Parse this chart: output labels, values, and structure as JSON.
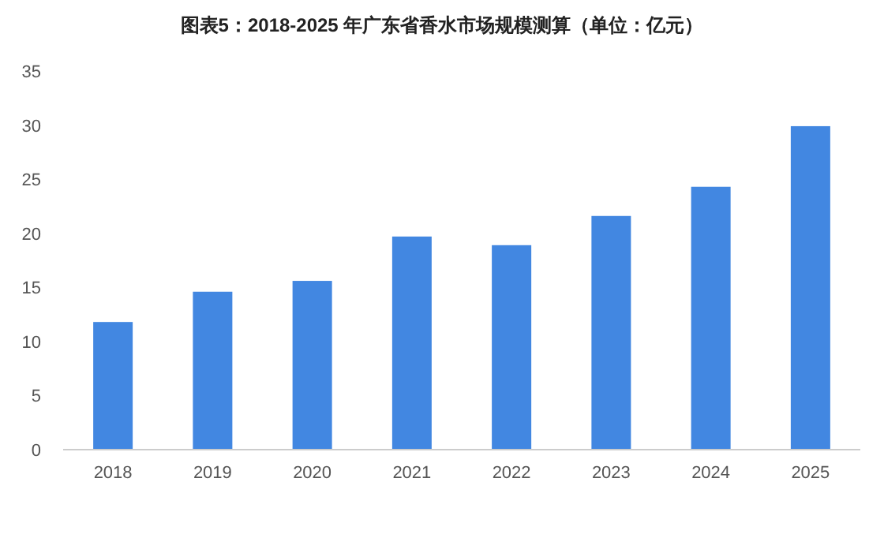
{
  "chart_data": {
    "type": "bar",
    "title": "图表5：2018-2025 年广东省香水市场规模测算（单位：亿元）",
    "categories": [
      "2018",
      "2019",
      "2020",
      "2021",
      "2022",
      "2023",
      "2024",
      "2025"
    ],
    "values": [
      11.8,
      14.6,
      15.6,
      19.7,
      18.9,
      21.6,
      24.3,
      29.9
    ],
    "color": "#4287e1",
    "ylim": [
      0,
      35
    ],
    "yticks": [
      0,
      5,
      10,
      15,
      20,
      25,
      30,
      35
    ],
    "grid": false
  }
}
